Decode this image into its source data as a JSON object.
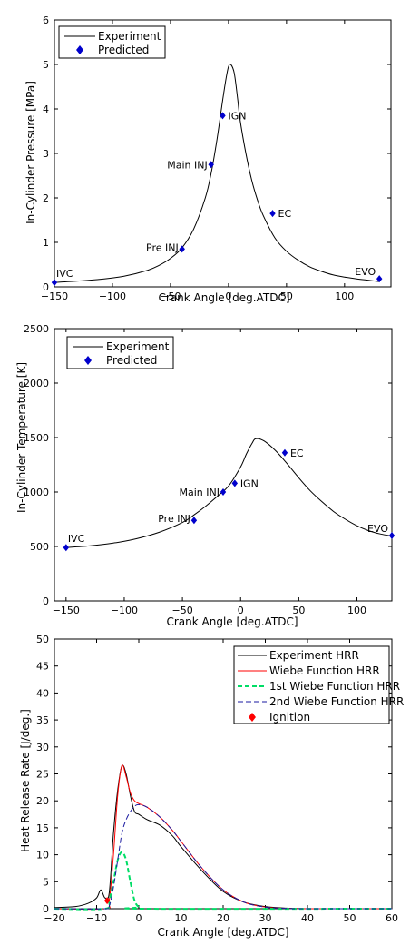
{
  "chart_data": [
    {
      "type": "line",
      "xlabel": "Crank Angle [deg.ATDC]",
      "ylabel": "In-Cylinder Pressure [MPa]",
      "xlim": [
        -150,
        140
      ],
      "ylim": [
        0,
        6
      ],
      "xticks": [
        -150,
        -100,
        -50,
        0,
        50,
        100
      ],
      "yticks": [
        0,
        1,
        2,
        3,
        4,
        5,
        6
      ],
      "legend": {
        "placement": "top-left",
        "entries": [
          "Experiment",
          "Predicted"
        ]
      },
      "colors": {
        "experiment": "#000000",
        "predicted": "#0000cc"
      },
      "series": [
        {
          "name": "Experiment",
          "style": "line",
          "x": [
            -150,
            -130,
            -110,
            -90,
            -70,
            -60,
            -50,
            -40,
            -30,
            -20,
            -15,
            -10,
            -5,
            -2,
            0,
            2,
            5,
            8,
            10,
            15,
            20,
            25,
            30,
            40,
            50,
            60,
            70,
            80,
            90,
            100,
            110,
            120,
            130
          ],
          "y": [
            0.1,
            0.13,
            0.17,
            0.24,
            0.37,
            0.48,
            0.64,
            0.88,
            1.3,
            2.0,
            2.55,
            3.3,
            4.2,
            4.7,
            4.95,
            5.0,
            4.8,
            4.2,
            3.75,
            3.0,
            2.4,
            1.95,
            1.6,
            1.1,
            0.8,
            0.6,
            0.45,
            0.35,
            0.27,
            0.22,
            0.18,
            0.15,
            0.12
          ]
        },
        {
          "name": "Predicted",
          "style": "diamond",
          "x": [
            -150,
            -40,
            -15,
            -5,
            38,
            130
          ],
          "y": [
            0.1,
            0.85,
            2.75,
            3.85,
            1.65,
            0.18
          ],
          "labels": [
            "IVC",
            "Pre INJ",
            "Main INJ",
            "IGN",
            "EC",
            "EVO"
          ]
        }
      ]
    },
    {
      "type": "line",
      "xlabel": "Crank Angle [deg.ATDC]",
      "ylabel": "In-Cylinder Temperature [K]",
      "xlim": [
        -160,
        130
      ],
      "ylim": [
        0,
        2500
      ],
      "xticks": [
        -150,
        -100,
        -50,
        0,
        50,
        100
      ],
      "yticks": [
        0,
        500,
        1000,
        1500,
        2000,
        2500
      ],
      "legend": {
        "placement": "top-left",
        "entries": [
          "Experiment",
          "Predicted"
        ]
      },
      "colors": {
        "experiment": "#000000",
        "predicted": "#0000cc"
      },
      "series": [
        {
          "name": "Experiment",
          "style": "line",
          "x": [
            -150,
            -130,
            -110,
            -90,
            -70,
            -50,
            -40,
            -30,
            -20,
            -10,
            0,
            5,
            10,
            13,
            20,
            30,
            40,
            50,
            60,
            70,
            80,
            90,
            100,
            110,
            120,
            130
          ],
          "y": [
            490,
            505,
            530,
            570,
            630,
            720,
            790,
            870,
            960,
            1060,
            1230,
            1350,
            1450,
            1490,
            1470,
            1380,
            1260,
            1130,
            1010,
            910,
            820,
            750,
            690,
            645,
            615,
            595
          ]
        },
        {
          "name": "Predicted",
          "style": "diamond",
          "x": [
            -150,
            -40,
            -15,
            -5,
            38,
            130
          ],
          "y": [
            490,
            740,
            1000,
            1080,
            1360,
            600
          ],
          "labels": [
            "IVC",
            "Pre INJ",
            "Main INJ",
            "IGN",
            "EC",
            "EVO"
          ]
        }
      ]
    },
    {
      "type": "line",
      "xlabel": "Crank Angle [deg.ATDC]",
      "ylabel": "Heat Release Rate [J/deg.]",
      "xlim": [
        -20,
        60
      ],
      "ylim": [
        0,
        50
      ],
      "xticks": [
        -20,
        -10,
        0,
        10,
        20,
        30,
        40,
        50,
        60
      ],
      "yticks": [
        0,
        5,
        10,
        15,
        20,
        25,
        30,
        35,
        40,
        45,
        50
      ],
      "legend": {
        "placement": "top-right",
        "entries": [
          "Experiment HRR",
          "Wiebe Function HRR",
          "1st Wiebe Function HRR",
          "2nd Wiebe Function HRR",
          "Ignition"
        ]
      },
      "colors": {
        "experiment": "#000000",
        "wiebe": "#ff0000",
        "wiebe1": "#00dd66",
        "wiebe2": "#1a1aa0",
        "ignition": "#ff0000"
      },
      "series": [
        {
          "name": "Experiment HRR",
          "style": "solid",
          "x": [
            -20,
            -15,
            -12,
            -10,
            -9,
            -8,
            -7,
            -6,
            -5,
            -4,
            -3,
            -2,
            -1,
            0,
            2,
            5,
            8,
            10,
            15,
            20,
            25,
            30,
            35,
            40,
            50,
            60
          ],
          "y": [
            0.2,
            0.4,
            1.0,
            2.0,
            3.5,
            2.0,
            3.0,
            14.0,
            22.0,
            26.5,
            25.0,
            21.0,
            18.0,
            17.5,
            16.5,
            15.5,
            13.5,
            11.5,
            7.0,
            3.2,
            1.2,
            0.4,
            0.1,
            0.0,
            0.0,
            0.0
          ]
        },
        {
          "name": "Wiebe Function HRR",
          "style": "solid",
          "x": [
            -20,
            -8,
            -7,
            -6,
            -5,
            -4,
            -3,
            -2,
            -1,
            0,
            2,
            5,
            8,
            10,
            15,
            20,
            25,
            30,
            35,
            40,
            60
          ],
          "y": [
            0,
            0,
            1.5,
            10,
            21.0,
            26.5,
            24.5,
            21.5,
            20.0,
            19.5,
            18.8,
            17.0,
            14.5,
            12.5,
            7.5,
            3.5,
            1.2,
            0.3,
            0.05,
            0,
            0
          ]
        },
        {
          "name": "1st Wiebe Function HRR",
          "style": "dashed",
          "x": [
            -20,
            -8,
            -7,
            -6,
            -5,
            -4,
            -3,
            -2,
            -1,
            0,
            1,
            60
          ],
          "y": [
            0,
            0,
            1.5,
            5.0,
            9.0,
            10.5,
            9.0,
            5.0,
            1.5,
            0.3,
            0,
            0
          ]
        },
        {
          "name": "2nd Wiebe Function HRR",
          "style": "dashed",
          "x": [
            -20,
            -8,
            -7,
            -6,
            -5,
            -4,
            -3,
            -2,
            -1,
            0,
            2,
            5,
            8,
            10,
            15,
            20,
            25,
            30,
            35,
            40,
            60
          ],
          "y": [
            0,
            0,
            0.5,
            4.0,
            9.0,
            14.0,
            16.5,
            18.0,
            19.0,
            19.3,
            18.8,
            17.0,
            14.5,
            12.5,
            7.5,
            3.5,
            1.2,
            0.3,
            0.05,
            0,
            0
          ]
        },
        {
          "name": "Ignition",
          "style": "diamond",
          "x": [
            -7.5
          ],
          "y": [
            1.5
          ]
        }
      ]
    }
  ]
}
